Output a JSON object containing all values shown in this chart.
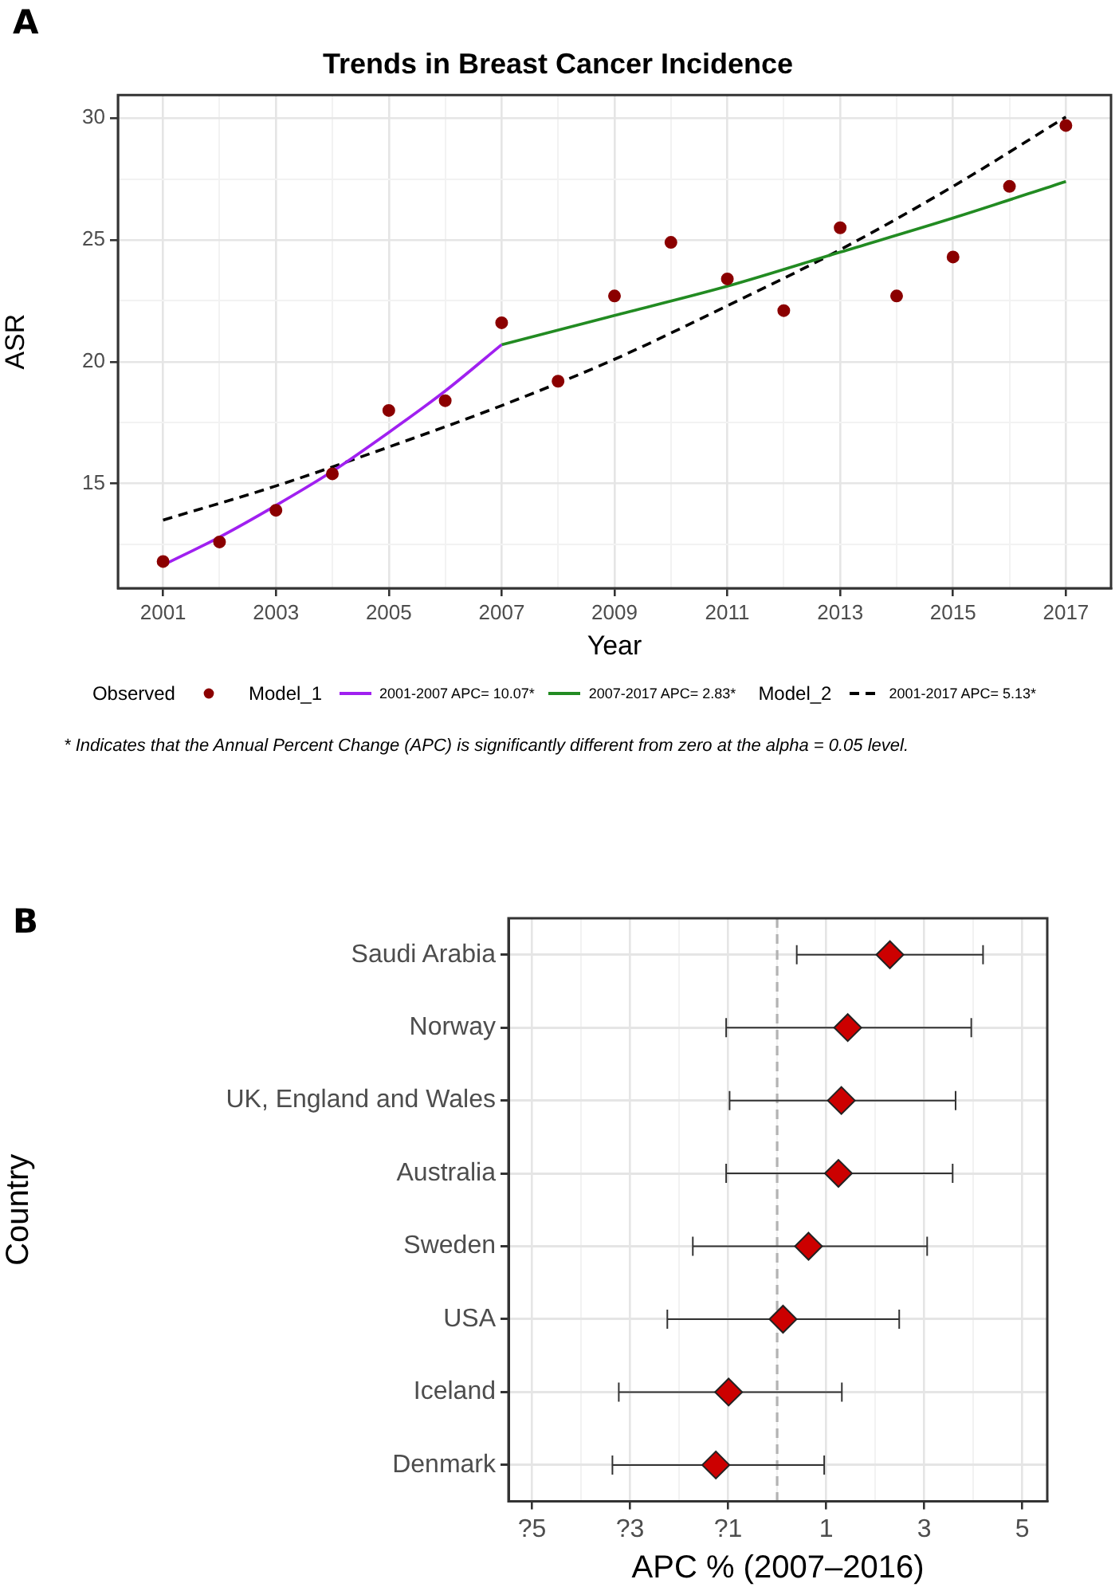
{
  "chart_data": [
    {
      "type": "scatter",
      "title": "Trends in Breast Cancer Incidence",
      "xlabel": "Year",
      "ylabel": "ASR",
      "annotations": [
        "A",
        "Observed",
        "Model_1",
        "Model_2",
        "* Indicates that the Annual Percent Change (APC) is significantly different from zero at the alpha = 0.05 level."
      ],
      "xlim": [
        2000.2,
        2017.8
      ],
      "ylim": [
        10.7,
        30.95
      ],
      "xticks": [
        2001,
        {
          "value": 2002,
          "label": null
        },
        2003,
        {
          "value": 2004,
          "label": null
        },
        2005,
        {
          "value": 2006,
          "label": null
        },
        2007,
        {
          "value": 2008,
          "label": null
        },
        2009,
        {
          "value": 2010,
          "label": null
        },
        2011,
        {
          "value": 2012,
          "label": null
        },
        2013,
        {
          "value": 2014,
          "label": null
        },
        2015,
        {
          "value": 2016,
          "label": null
        },
        2017
      ],
      "yticks": [
        {
          "value": 12.5,
          "label": null
        },
        15,
        {
          "value": 17.5,
          "label": null
        },
        20,
        {
          "value": 22.5,
          "label": null
        },
        25,
        {
          "value": 27.5,
          "label": null
        },
        30
      ],
      "grid": true,
      "legend": "bottom",
      "series": [
        {
          "type": "scatter",
          "marker": "circle",
          "color": "#8b0000",
          "x": [
            2001,
            2002,
            2003,
            2004,
            2005,
            2006,
            2007,
            2008,
            2009,
            2010,
            2011,
            2012,
            2013,
            2014,
            2015,
            2016,
            2017
          ],
          "values": [
            11.8,
            12.6,
            13.9,
            15.4,
            18.0,
            18.4,
            21.6,
            19.2,
            22.7,
            24.9,
            23.4,
            22.1,
            25.5,
            22.7,
            24.3,
            27.2,
            29.7
          ]
        },
        {
          "type": "line",
          "name": "2001-2007 APC= 10.07*",
          "color": "#a020f0",
          "line_style": "solid",
          "x": [
            2001,
            2002,
            2003,
            2004,
            2005,
            2006,
            2007
          ],
          "values": [
            11.65,
            12.8,
            14.1,
            15.5,
            17.1,
            18.8,
            20.7
          ]
        },
        {
          "type": "line",
          "name": "2007-2017 APC= 2.83*",
          "color": "#228b22",
          "line_style": "solid",
          "x": [
            2007,
            2009,
            2011,
            2013,
            2015,
            2017
          ],
          "values": [
            20.7,
            21.9,
            23.1,
            24.5,
            25.9,
            27.4
          ]
        },
        {
          "type": "line",
          "name": "2001-2017 APC= 5.13*",
          "color": "#000000",
          "line_style": "dashed",
          "x": [
            2001,
            2003,
            2005,
            2007,
            2009,
            2011,
            2013,
            2015,
            2017
          ],
          "values": [
            13.5,
            14.9,
            16.5,
            18.2,
            20.1,
            22.3,
            24.6,
            27.2,
            30.05
          ]
        }
      ]
    },
    {
      "type": "scatter",
      "orientation": "horizontal",
      "xlabel": "APC % (2007–2016)",
      "ylabel": "Country",
      "annotations": [
        "B"
      ],
      "categories": [
        "Saudi Arabia",
        "Norway",
        "UK, England and Wales",
        "Australia",
        "Sweden",
        "USA",
        "Iceland",
        "Denmark"
      ],
      "xlim": [
        -5.48,
        5.51
      ],
      "xticks": [
        {
          "value": -5,
          "label": "?5"
        },
        {
          "value": -4,
          "label": null
        },
        {
          "value": -3,
          "label": "?3"
        },
        {
          "value": -2,
          "label": null
        },
        {
          "value": -1,
          "label": "?1"
        },
        {
          "value": 0,
          "label": null
        },
        1,
        {
          "value": 2,
          "label": null
        },
        3,
        {
          "value": 4,
          "label": null
        },
        5
      ],
      "grid": true,
      "marker": "diamond",
      "legend": false,
      "ref_lines": [
        {
          "axis": "x",
          "value": 0,
          "color": "#b3b3b3",
          "line_style": "dashed"
        }
      ],
      "series": [
        {
          "color": "#cc0000",
          "values": [
            2.3,
            1.44,
            1.31,
            1.25,
            0.64,
            0.12,
            -0.99,
            -1.25
          ],
          "errors": [
            [
              0.4,
              4.2
            ],
            [
              -1.04,
              3.96
            ],
            [
              -0.97,
              3.64
            ],
            [
              -1.04,
              3.58
            ],
            [
              -1.72,
              3.06
            ],
            [
              -2.24,
              2.49
            ],
            [
              -3.23,
              1.32
            ],
            [
              -3.36,
              0.96
            ]
          ]
        }
      ]
    }
  ]
}
